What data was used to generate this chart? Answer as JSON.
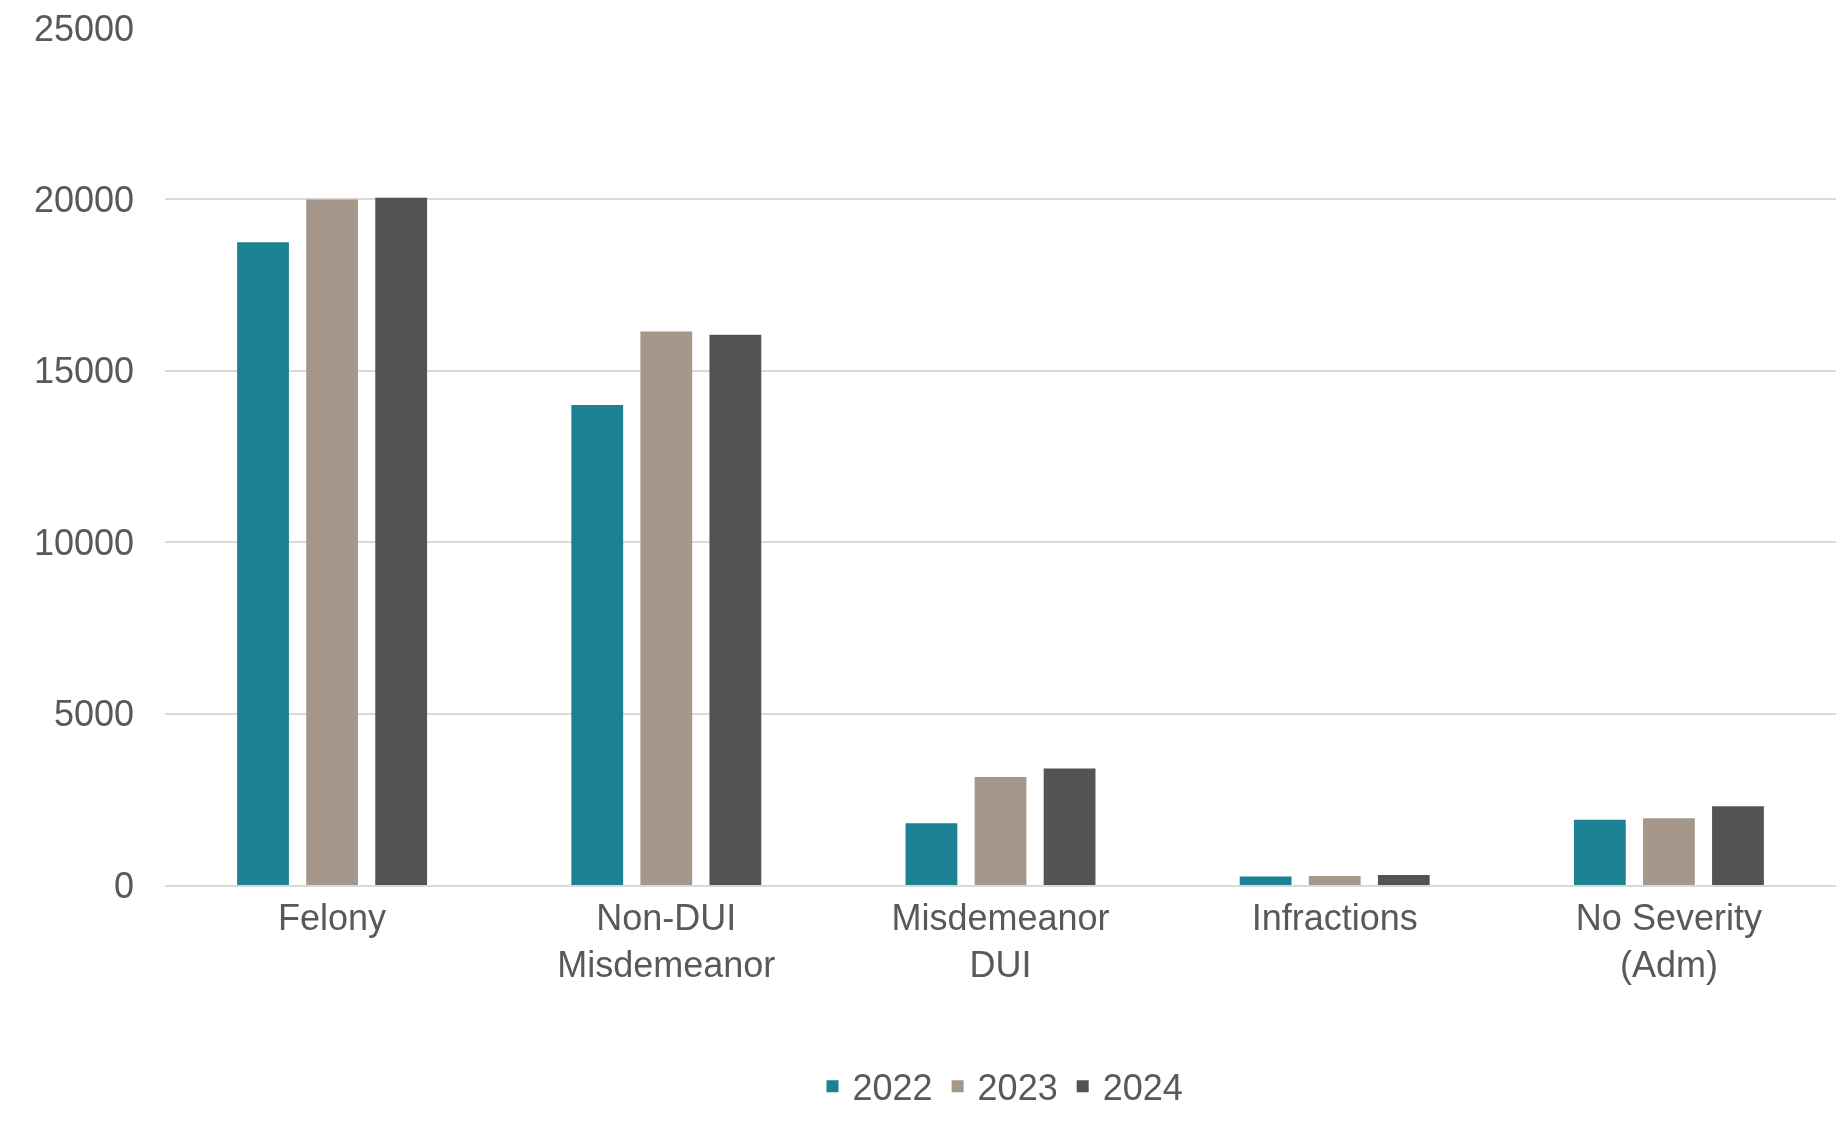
{
  "chart_data": {
    "type": "bar",
    "categories": [
      "Felony",
      "Non-DUI Misdemeanor",
      "Misdemeanor DUI",
      "Infractions",
      "No Severity (Adm)"
    ],
    "series": [
      {
        "name": "2022",
        "color": "#1b8193",
        "values": [
          18750,
          14000,
          1800,
          250,
          1900
        ]
      },
      {
        "name": "2023",
        "color": "#a59789",
        "values": [
          20000,
          16150,
          3150,
          260,
          1950
        ]
      },
      {
        "name": "2024",
        "color": "#535353",
        "values": [
          20050,
          16050,
          3400,
          290,
          2300
        ]
      }
    ],
    "ylim": [
      0,
      25000
    ],
    "yticks": [
      0,
      5000,
      10000,
      15000,
      20000,
      25000
    ],
    "grid": "y",
    "legend": "bottom"
  }
}
